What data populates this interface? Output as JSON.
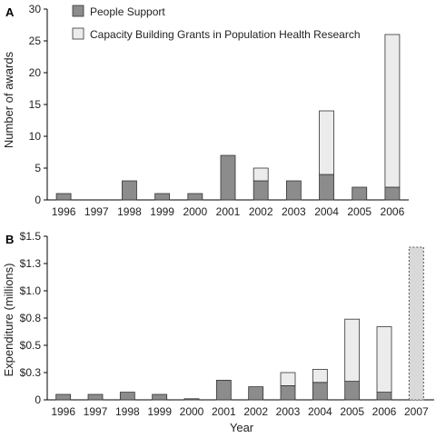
{
  "colors": {
    "people_support": "#8c8c8c",
    "capacity_grants": "#ececec",
    "bar_stroke": "#333333",
    "projected_fill": "#d9d9d9"
  },
  "chart_data": [
    {
      "panel_label": "A",
      "type": "bar",
      "stacked": true,
      "ylabel": "Number of awards",
      "xlabel": "",
      "ylim": [
        0,
        30
      ],
      "y_ticks": [
        0,
        5,
        10,
        15,
        20,
        25,
        30
      ],
      "y_tick_labels": [
        "0",
        "5",
        "10",
        "15",
        "20",
        "25",
        "30"
      ],
      "categories": [
        "1996",
        "1997",
        "1998",
        "1999",
        "2000",
        "2001",
        "2002",
        "2003",
        "2004",
        "2005",
        "2006"
      ],
      "series": [
        {
          "name": "People Support",
          "color": "#8c8c8c",
          "values": [
            1,
            0,
            3,
            1,
            1,
            7,
            3,
            3,
            4,
            2,
            2
          ]
        },
        {
          "name": "Capacity Building Grants in Population Health Research",
          "color": "#ececec",
          "values": [
            0,
            0,
            0,
            0,
            0,
            0,
            2,
            0,
            10,
            0,
            24
          ]
        }
      ],
      "legend_position": "top-left"
    },
    {
      "panel_label": "B",
      "type": "bar",
      "stacked": true,
      "ylabel": "Expenditure (millions)",
      "xlabel": "Year",
      "ylim": [
        0,
        1.5
      ],
      "y_ticks": [
        0,
        0.25,
        0.5,
        0.75,
        1.0,
        1.25,
        1.5
      ],
      "y_tick_labels": [
        "0",
        "$0.3",
        "$0.5",
        "$0.8",
        "$1.0",
        "$1.3",
        "$1.5"
      ],
      "categories": [
        "1996",
        "1997",
        "1998",
        "1999",
        "2000",
        "2001",
        "2002",
        "2003",
        "2004",
        "2005",
        "2006",
        "2007"
      ],
      "series": [
        {
          "name": "People Support",
          "color": "#8c8c8c",
          "values": [
            0.05,
            0.05,
            0.07,
            0.05,
            0.01,
            0.18,
            0.12,
            0.13,
            0.16,
            0.17,
            0.07,
            0
          ]
        },
        {
          "name": "Capacity Building Grants in Population Health Research",
          "color": "#ececec",
          "values": [
            0,
            0,
            0,
            0,
            0,
            0,
            0,
            0.12,
            0.12,
            0.57,
            0.6,
            0
          ]
        }
      ],
      "projected": {
        "category": "2007",
        "value": 1.4,
        "style": "dashed"
      }
    }
  ]
}
